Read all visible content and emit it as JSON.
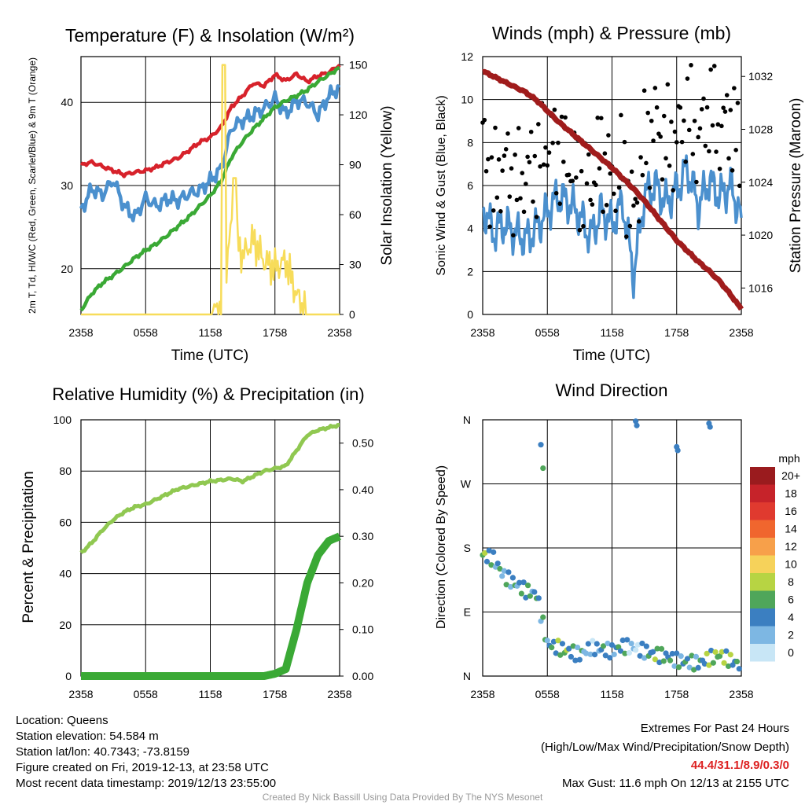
{
  "colors": {
    "red": "#d7222b",
    "green": "#3aa935",
    "blue": "#4b90ce",
    "yellow": "#f7dc5a",
    "maroon": "#a01c1c",
    "black": "#000000",
    "rh": "#90c851"
  },
  "chart_data": [
    {
      "type": "line",
      "title": "Temperature (F) & Insolation (W/m²)",
      "xlabel": "Time (UTC)",
      "ylabel": "2m T, Td, HI/WC (Red, Green, Scarlet/Blue) & 9m T (Orange)",
      "y2label": "Solar Insolation (Yellow)",
      "x_ticks": [
        "2358",
        "0558",
        "1158",
        "1758",
        "2358"
      ],
      "ylim": [
        14.5,
        45.5
      ],
      "y_ticks": [
        20,
        30,
        40
      ],
      "y2lim": [
        0,
        155
      ],
      "y2_ticks": [
        0,
        30,
        60,
        90,
        120,
        150
      ],
      "hours": [
        0,
        1,
        2,
        3,
        4,
        5,
        6,
        7,
        8,
        9,
        10,
        11,
        12,
        13,
        14,
        15,
        16,
        17,
        18,
        19,
        20,
        21,
        22,
        23,
        24
      ],
      "series": [
        {
          "color_key": "red",
          "axis": "left",
          "values": [
            32.5,
            32.8,
            32.3,
            31.8,
            31.3,
            31.6,
            31.8,
            32.2,
            32.8,
            33.3,
            34.2,
            35.2,
            35.8,
            37.0,
            39.5,
            40.8,
            42.3,
            42.0,
            43.3,
            42.6,
            43.4,
            42.5,
            43.2,
            43.6,
            44.5
          ]
        },
        {
          "color_key": "blue",
          "axis": "left",
          "values": [
            27.0,
            29.6,
            28.9,
            30.7,
            27.5,
            26.2,
            28.5,
            27.5,
            28.4,
            28.2,
            29.0,
            29.4,
            30.6,
            32.0,
            37.0,
            37.8,
            38.5,
            39.3,
            40.5,
            38.6,
            40.2,
            40.0,
            38.5,
            40.8,
            41.8
          ]
        },
        {
          "color_key": "green",
          "axis": "left",
          "values": [
            15.0,
            17.0,
            18.3,
            19.2,
            20.2,
            21.3,
            22.2,
            23.0,
            24.0,
            25.1,
            26.2,
            27.5,
            28.8,
            30.5,
            33.5,
            35.3,
            36.8,
            38.1,
            39.4,
            40.2,
            40.8,
            41.5,
            42.5,
            43.3,
            44.2
          ]
        },
        {
          "color_key": "yellow",
          "axis": "right",
          "values": [
            0,
            0,
            0,
            0,
            0,
            0,
            0,
            0,
            0,
            0,
            0,
            0,
            0,
            5,
            55,
            35,
            45,
            32,
            28,
            32,
            12,
            0,
            0,
            0,
            0
          ]
        }
      ]
    },
    {
      "type": "line",
      "title": "Winds (mph) & Pressure (mb)",
      "xlabel": "Time (UTC)",
      "ylabel": "Sonic Wind & Gust (Blue, Black)",
      "y2label": "Station Pressure (Maroon)",
      "x_ticks": [
        "2358",
        "0558",
        "1158",
        "1758",
        "2358"
      ],
      "ylim": [
        0,
        12
      ],
      "y_ticks": [
        0,
        2,
        4,
        6,
        8,
        10,
        12
      ],
      "y2lim": [
        1014.0,
        1033.5
      ],
      "y2_ticks": [
        1016,
        1020,
        1024,
        1028,
        1032
      ],
      "hours": [
        0,
        1,
        2,
        3,
        4,
        5,
        6,
        7,
        8,
        9,
        10,
        11,
        12,
        13,
        14,
        15,
        16,
        17,
        18,
        19,
        20,
        21,
        22,
        23,
        24
      ],
      "series": [
        {
          "color_key": "blue",
          "axis": "left",
          "values": [
            5.0,
            3.8,
            4.2,
            3.8,
            3.5,
            4.0,
            4.8,
            5.5,
            5.2,
            4.6,
            3.6,
            4.8,
            4.2,
            5.2,
            1.8,
            5.5,
            6.0,
            5.2,
            5.8,
            6.8,
            5.0,
            6.2,
            5.5,
            6.0,
            4.5
          ]
        },
        {
          "color_key": "black",
          "axis": "left",
          "values": [
            8.0,
            5.8,
            7.2,
            6.0,
            6.5,
            7.0,
            8.2,
            7.5,
            7.2,
            6.2,
            6.0,
            7.5,
            6.0,
            7.0,
            4.5,
            7.8,
            9.0,
            8.0,
            8.2,
            9.5,
            8.0,
            9.8,
            8.5,
            9.2,
            7.0
          ]
        },
        {
          "color_key": "maroon",
          "axis": "right",
          "values": [
            1032.4,
            1032.0,
            1031.6,
            1031.2,
            1030.8,
            1030.2,
            1029.4,
            1028.6,
            1027.9,
            1027.2,
            1026.5,
            1025.8,
            1025.1,
            1024.3,
            1023.5,
            1022.6,
            1021.6,
            1020.6,
            1019.6,
            1018.8,
            1018.0,
            1017.3,
            1016.5,
            1015.5,
            1014.4
          ]
        }
      ]
    },
    {
      "type": "line",
      "title": "Relative Humidity (%) & Precipitation (in)",
      "ylabel": "Percent & Precipitation",
      "x_ticks": [
        "2358",
        "0558",
        "1158",
        "1758",
        "2358"
      ],
      "ylim": [
        0,
        100
      ],
      "y_ticks": [
        0,
        20,
        40,
        60,
        80,
        100
      ],
      "y2lim": [
        0,
        0.55
      ],
      "y2_ticks": [
        "0.00",
        "0.10",
        "0.20",
        "0.30",
        "0.40",
        "0.50"
      ],
      "hours": [
        0,
        1,
        2,
        3,
        4,
        5,
        6,
        7,
        8,
        9,
        10,
        11,
        12,
        13,
        14,
        15,
        16,
        17,
        18,
        19,
        20,
        21,
        22,
        23,
        24
      ],
      "series": [
        {
          "name": "Relative Humidity",
          "color_key": "rh",
          "axis": "left",
          "values": [
            48,
            52,
            57,
            61,
            64,
            66,
            67,
            69,
            71,
            73,
            74,
            75,
            76,
            76.5,
            77,
            76,
            78,
            80,
            81,
            82,
            88,
            94,
            96,
            97,
            98
          ]
        },
        {
          "name": "Precipitation",
          "color_key": "green",
          "axis": "right",
          "values": [
            0,
            0,
            0,
            0,
            0,
            0,
            0,
            0,
            0,
            0,
            0,
            0,
            0,
            0,
            0,
            0,
            0,
            0,
            0.005,
            0.015,
            0.1,
            0.2,
            0.26,
            0.29,
            0.3
          ]
        }
      ]
    },
    {
      "type": "scatter",
      "title": "Wind Direction",
      "ylabel": "Direction (Colored By Speed)",
      "x_ticks": [
        "2358",
        "0558",
        "1158",
        "1758",
        "2358"
      ],
      "y_ticks": [
        "N",
        "E",
        "S",
        "W",
        "N"
      ],
      "ylim": [
        0,
        360
      ],
      "hours": [
        0,
        1,
        2,
        3,
        4,
        5,
        6,
        7,
        8,
        9,
        10,
        11,
        12,
        13,
        14,
        15,
        16,
        17,
        18,
        19,
        20,
        21,
        22,
        23,
        24
      ],
      "direction_deg": [
        170,
        165,
        140,
        130,
        120,
        115,
        45,
        40,
        35,
        30,
        40,
        38,
        35,
        42,
        40,
        35,
        30,
        28,
        22,
        20,
        18,
        25,
        30,
        22,
        15
      ],
      "speed_mph": [
        6,
        4,
        3,
        4,
        5,
        4,
        4,
        6,
        5,
        4,
        2,
        4,
        3,
        5,
        1,
        4,
        6,
        5,
        4,
        5,
        4,
        6,
        7,
        6,
        3
      ],
      "extra_points": [
        {
          "hour": 5.4,
          "direction_deg": 325,
          "speed_mph": 4
        },
        {
          "hour": 5.6,
          "direction_deg": 292,
          "speed_mph": 6
        },
        {
          "hour": 14.2,
          "direction_deg": 358,
          "speed_mph": 3
        },
        {
          "hour": 14.3,
          "direction_deg": 352,
          "speed_mph": 4
        },
        {
          "hour": 18.0,
          "direction_deg": 322,
          "speed_mph": 3
        },
        {
          "hour": 18.1,
          "direction_deg": 317,
          "speed_mph": 4
        },
        {
          "hour": 21.0,
          "direction_deg": 355,
          "speed_mph": 4
        },
        {
          "hour": 21.1,
          "direction_deg": 350,
          "speed_mph": 4
        }
      ],
      "legend": {
        "title": "mph",
        "labels": [
          "20+",
          "18",
          "16",
          "14",
          "12",
          "10",
          "8",
          "6",
          "4",
          "2",
          "0"
        ],
        "colors": [
          "#9a1b1e",
          "#c6232a",
          "#e03a2f",
          "#f0662e",
          "#f7a04a",
          "#f6d25a",
          "#b7d443",
          "#4fa65a",
          "#3b7fc1",
          "#7db7e3",
          "#c8e6f6"
        ]
      }
    }
  ],
  "footer": {
    "location": "Location: Queens",
    "elevation": "Station elevation: 54.584 m",
    "latlon": "Station lat/lon: 40.7343; -73.8159",
    "created": "Figure created on Fri, 2019-12-13, at 23:58 UTC",
    "recent": "Most recent data timestamp: 2019/12/13 23:55:00",
    "extremes_title": "Extremes For Past 24 Hours",
    "extremes_legend": "(High/Low/Max Wind/Precipitation/Snow Depth)",
    "extremes_values": "44.4/31.1/8.9/0.3/0",
    "max_gust": "Max Gust: 11.6 mph On 12/13 at 2155 UTC",
    "credit": "Created By Nick Bassill Using Data Provided By The NYS Mesonet"
  }
}
